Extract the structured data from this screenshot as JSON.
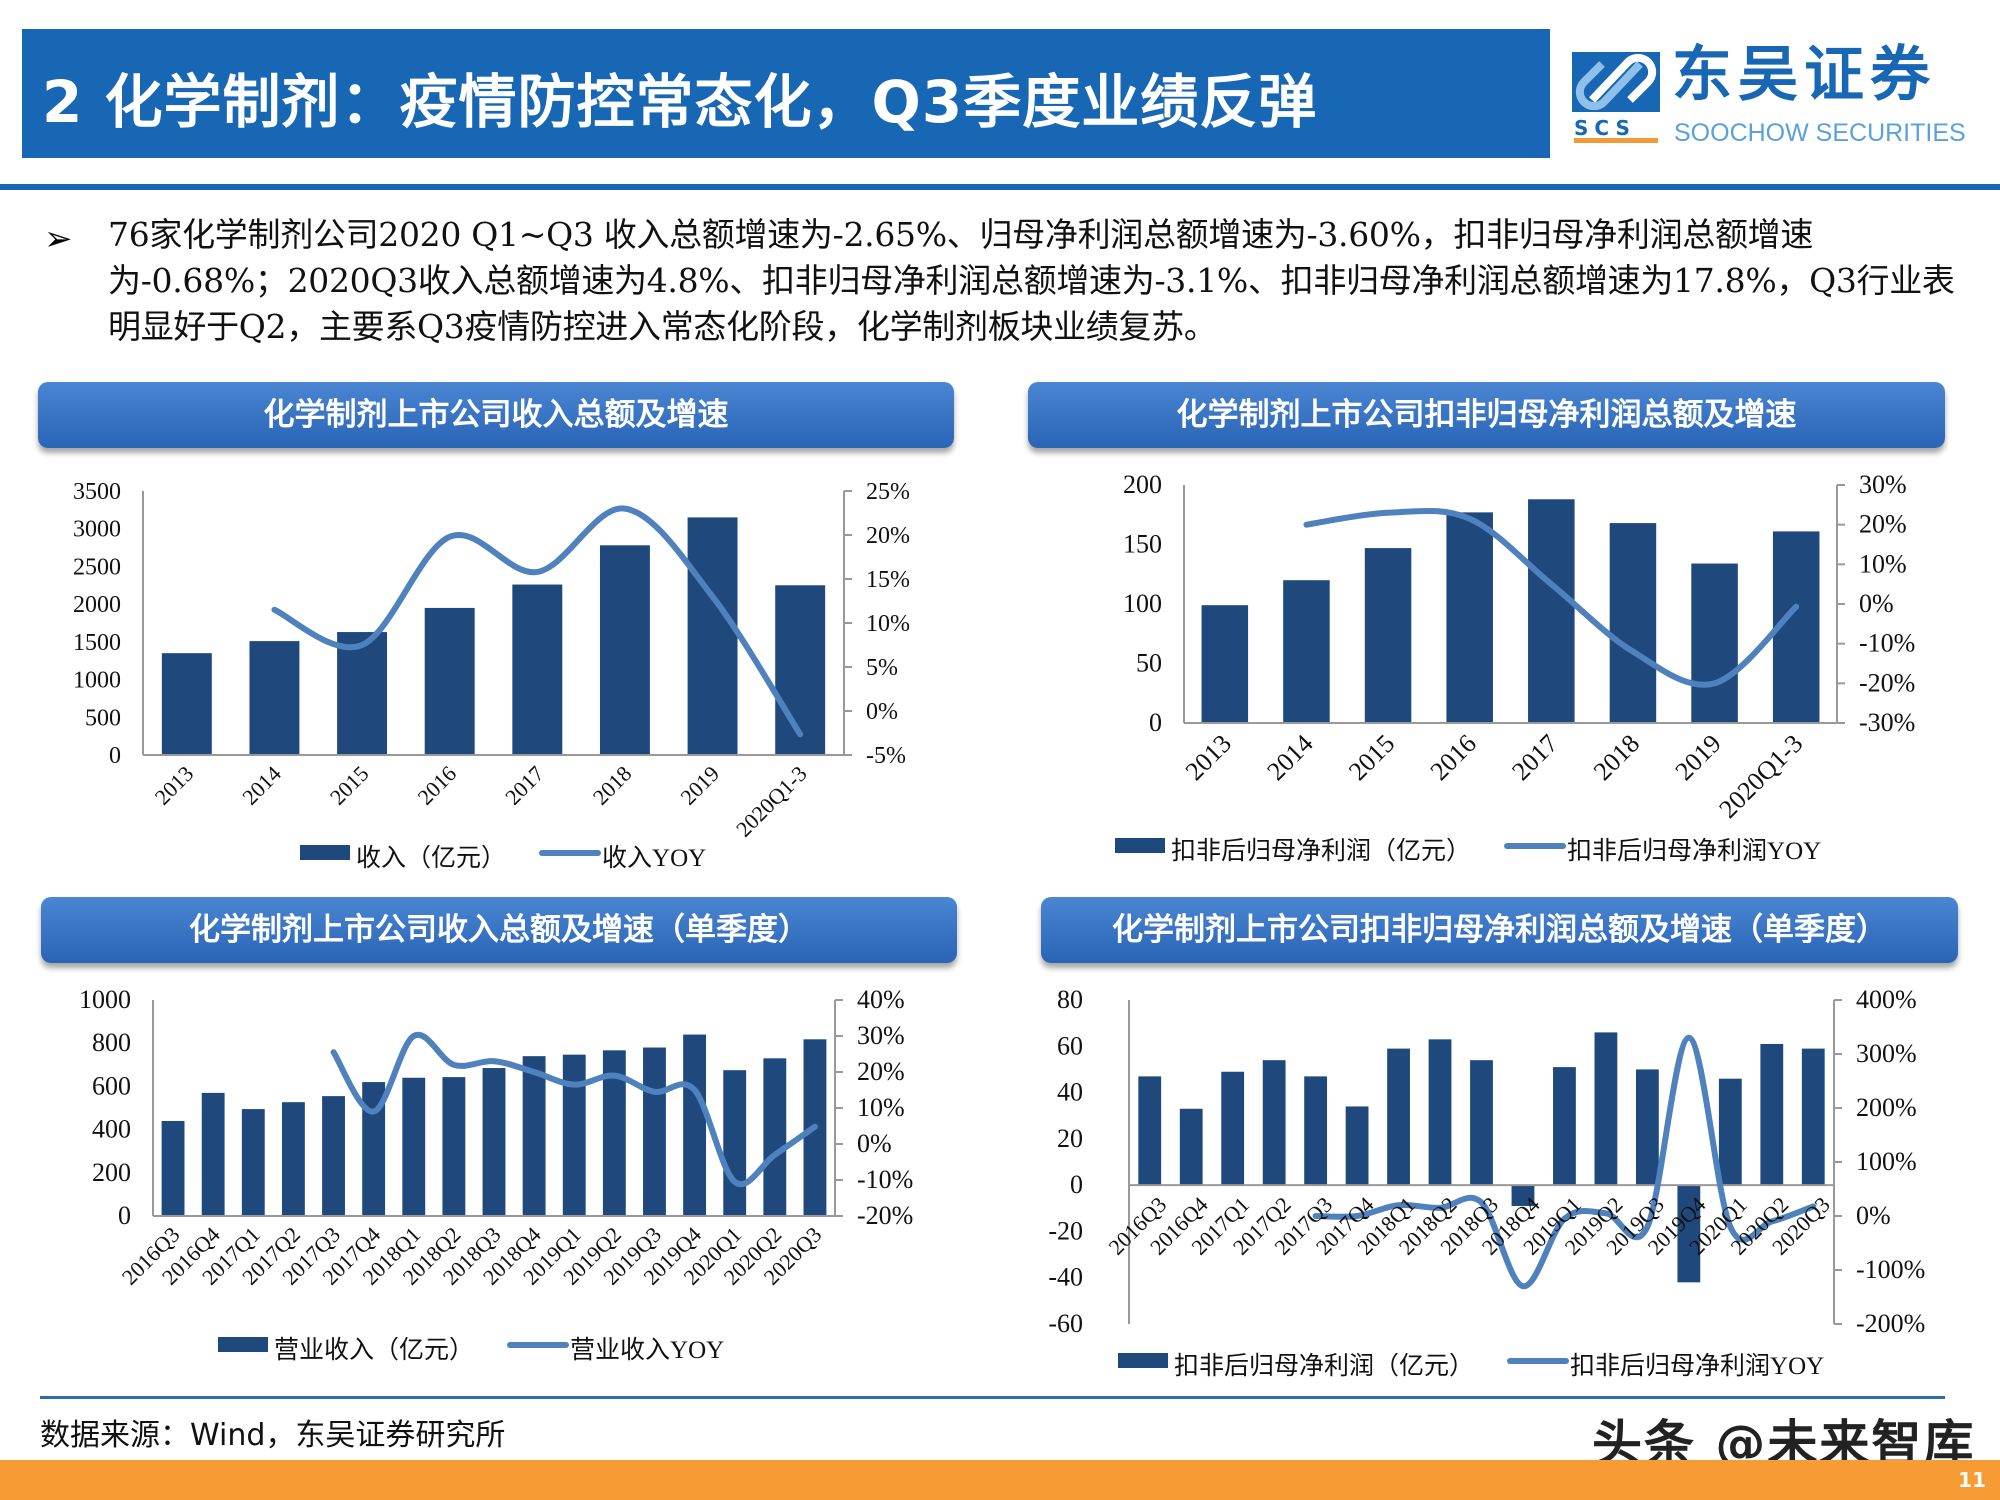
{
  "header": {
    "title": "2 化学制剂：疫情防控常态化，Q3季度业绩反弹",
    "logo_cn": "东吴证券",
    "logo_en": "SOOCHOW SECURITIES",
    "logo_abbr": "SCS"
  },
  "bullet": {
    "icon": "arrow-bullet-icon",
    "text": "76家化学制剂公司2020 Q1~Q3 收入总额增速为-2.65%、归母净利润总额增速为-3.60%，扣非归母净利润总额增速为-0.68%；2020Q3收入总额增速为4.8%、扣非归母净利润总额增速为-3.1%、扣非归母净利润总额增速为17.8%，Q3行业表明显好于Q2，主要系Q3疫情防控进入常态化阶段，化学制剂板块业绩复苏。"
  },
  "colors": {
    "brand": "#1767b5",
    "bar": "#1f497d",
    "line": "#4f81bd",
    "accent": "#f79b35"
  },
  "chart_data": [
    {
      "type": "bar+line",
      "title": "化学制剂上市公司收入总额及增速",
      "categories": [
        "2013",
        "2014",
        "2015",
        "2016",
        "2017",
        "2018",
        "2019",
        "2020Q1-3"
      ],
      "series": [
        {
          "name": "收入（亿元）",
          "type": "bar",
          "axis": "left",
          "values": [
            1350,
            1510,
            1630,
            1950,
            2260,
            2780,
            3150,
            2250
          ]
        },
        {
          "name": "收入YOY",
          "type": "line",
          "axis": "right",
          "values": [
            null,
            11.5,
            7.5,
            19.8,
            15.8,
            23.0,
            13.0,
            -2.65
          ]
        }
      ],
      "ylim_left": [
        0,
        3500
      ],
      "ticks_left": [
        "0",
        "500",
        "1000",
        "1500",
        "2000",
        "2500",
        "3000",
        "3500"
      ],
      "ylim_right": [
        -5,
        25
      ],
      "ticks_right": [
        "-5%",
        "0%",
        "5%",
        "10%",
        "15%",
        "20%",
        "25%"
      ],
      "legend": "bottom",
      "grid": false
    },
    {
      "type": "bar+line",
      "title": "化学制剂上市公司扣非归母净利润总额及增速",
      "categories": [
        "2013",
        "2014",
        "2015",
        "2016",
        "2017",
        "2018",
        "2019",
        "2020Q1-3"
      ],
      "series": [
        {
          "name": "扣非后归母净利润（亿元）",
          "type": "bar",
          "axis": "left",
          "values": [
            99,
            120,
            147,
            177,
            188,
            168,
            134,
            161
          ]
        },
        {
          "name": "扣非后归母净利润YOY",
          "type": "line",
          "axis": "right",
          "values": [
            null,
            20,
            23,
            21.5,
            5,
            -12,
            -20,
            -0.68
          ]
        }
      ],
      "ylim_left": [
        0,
        200
      ],
      "ticks_left": [
        "0",
        "50",
        "100",
        "150",
        "200"
      ],
      "ylim_right": [
        -30,
        30
      ],
      "ticks_right": [
        "-30%",
        "-20%",
        "-10%",
        "0%",
        "10%",
        "20%",
        "30%"
      ],
      "legend": "bottom",
      "grid": false
    },
    {
      "type": "bar+line",
      "title": "化学制剂上市公司收入总额及增速（单季度）",
      "categories": [
        "2016Q3",
        "2016Q4",
        "2017Q1",
        "2017Q2",
        "2017Q3",
        "2017Q4",
        "2018Q1",
        "2018Q2",
        "2018Q3",
        "2018Q4",
        "2019Q1",
        "2019Q2",
        "2019Q3",
        "2019Q4",
        "2020Q1",
        "2020Q2",
        "2020Q3"
      ],
      "series": [
        {
          "name": "营业收入（亿元）",
          "type": "bar",
          "axis": "left",
          "values": [
            440,
            570,
            495,
            527,
            555,
            620,
            640,
            643,
            685,
            740,
            747,
            767,
            780,
            840,
            675,
            730,
            818
          ]
        },
        {
          "name": "营业收入YOY",
          "type": "line",
          "axis": "right",
          "values": [
            null,
            null,
            null,
            null,
            25.5,
            9,
            30,
            22,
            23,
            20,
            16.5,
            19,
            14.5,
            15,
            -10.5,
            -3,
            4.8
          ]
        }
      ],
      "ylim_left": [
        0,
        1000
      ],
      "ticks_left": [
        "0",
        "200",
        "400",
        "600",
        "800",
        "1000"
      ],
      "ylim_right": [
        -20,
        40
      ],
      "ticks_right": [
        "-20%",
        "-10%",
        "0%",
        "10%",
        "20%",
        "30%",
        "40%"
      ],
      "legend": "bottom",
      "grid": false
    },
    {
      "type": "bar+line",
      "title": "化学制剂上市公司扣非归母净利润总额及增速（单季度）",
      "categories": [
        "2016Q3",
        "2016Q4",
        "2017Q1",
        "2017Q2",
        "2017Q3",
        "2017Q4",
        "2018Q1",
        "2018Q2",
        "2018Q3",
        "2018Q4",
        "2019Q1",
        "2019Q2",
        "2019Q3",
        "2019Q4",
        "2020Q1",
        "2020Q2",
        "2020Q3"
      ],
      "series": [
        {
          "name": "扣非后归母净利润（亿元）",
          "type": "bar",
          "axis": "left",
          "values": [
            47,
            33,
            49,
            54,
            47,
            34,
            59,
            63,
            54,
            -9,
            51,
            66,
            50,
            -42,
            46,
            61,
            59
          ]
        },
        {
          "name": "扣非后归母净利润YOY",
          "type": "line",
          "axis": "right",
          "values": [
            null,
            null,
            null,
            null,
            0,
            0,
            20,
            15,
            25,
            -130,
            -5,
            5,
            -20,
            330,
            -20,
            -10,
            17.8
          ]
        }
      ],
      "ylim_left": [
        -60,
        80
      ],
      "ticks_left": [
        "-60",
        "-40",
        "-20",
        "0",
        "20",
        "40",
        "60",
        "80"
      ],
      "ylim_right": [
        -200,
        400
      ],
      "ticks_right": [
        "-200%",
        "-100%",
        "0%",
        "100%",
        "200%",
        "300%",
        "400%"
      ],
      "legend": "bottom",
      "grid": false
    }
  ],
  "footer": {
    "source": "数据来源：Wind，东吴证券研究所",
    "watermark": "头条 @未来智库",
    "page_number": "11"
  }
}
